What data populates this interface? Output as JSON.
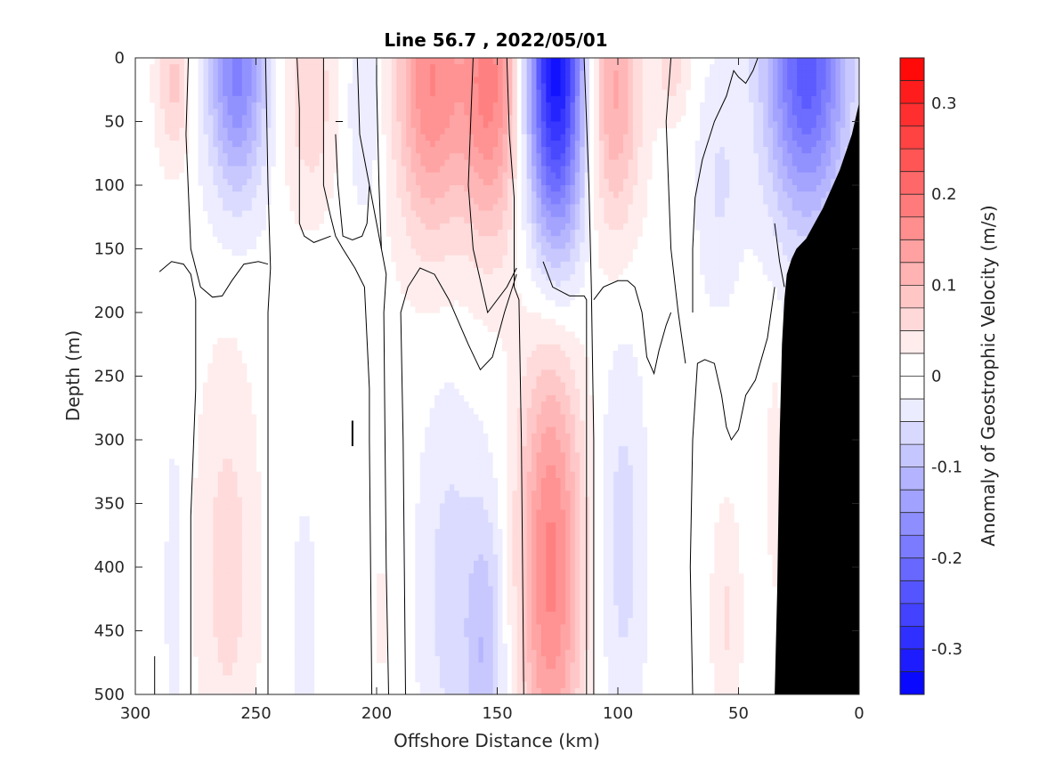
{
  "chart_data": {
    "type": "heatmap",
    "subtype": "filled-contour section",
    "title": "Line 56.7 , 2022/05/01",
    "xlabel": "Offshore Distance (km)",
    "ylabel": "Depth (m)",
    "colorbar_label": "Anomaly of Geostrophic Velocity (m/s)",
    "x_axis": {
      "min": 0,
      "max": 300,
      "reversed": true,
      "ticks": [
        300,
        250,
        200,
        150,
        100,
        50,
        0
      ],
      "tick_labels": [
        "300",
        "250",
        "200",
        "150",
        "100",
        "50",
        "0"
      ]
    },
    "y_axis": {
      "min": 0,
      "max": 500,
      "reversed": true,
      "ticks": [
        0,
        50,
        100,
        150,
        200,
        250,
        300,
        350,
        400,
        450,
        500
      ],
      "tick_labels": [
        "0",
        "50",
        "100",
        "150",
        "200",
        "250",
        "300",
        "350",
        "400",
        "450",
        "500"
      ]
    },
    "colorbar": {
      "min": -0.35,
      "max": 0.35,
      "step": 0.025,
      "ticks": [
        0.3,
        0.2,
        0.1,
        0,
        -0.1,
        -0.2,
        -0.3
      ],
      "tick_labels": [
        "0.3",
        "0.2",
        "0.1",
        "0",
        "-0.1",
        "-0.2",
        "-0.3"
      ],
      "positive_color": "#ff0000",
      "negative_color": "#0000ff",
      "zero_color": "#ffffff"
    },
    "grid": false,
    "bathymetry_color": "#000000",
    "bathymetry": [
      [
        0,
        35
      ],
      [
        3,
        60
      ],
      [
        8,
        88
      ],
      [
        15,
        118
      ],
      [
        22,
        142
      ],
      [
        26,
        150
      ],
      [
        28,
        158
      ],
      [
        30,
        170
      ],
      [
        31,
        190
      ],
      [
        32,
        225
      ],
      [
        33,
        300
      ],
      [
        34,
        420
      ],
      [
        35,
        500
      ]
    ],
    "cores": [
      {
        "x": 284,
        "z": 20,
        "v": 0.07,
        "wx": 7,
        "wz": 60
      },
      {
        "x": 258,
        "z": 10,
        "v": -0.17,
        "wx": 12,
        "wz": 95
      },
      {
        "x": 228,
        "z": 30,
        "v": 0.06,
        "wx": 11,
        "wz": 85
      },
      {
        "x": 205,
        "z": 35,
        "v": -0.04,
        "wx": 7,
        "wz": 80
      },
      {
        "x": 178,
        "z": 18,
        "v": 0.16,
        "wx": 14,
        "wz": 120
      },
      {
        "x": 153,
        "z": 20,
        "v": 0.17,
        "wx": 13,
        "wz": 120
      },
      {
        "x": 126,
        "z": 6,
        "v": -0.33,
        "wx": 12,
        "wz": 140
      },
      {
        "x": 102,
        "z": 25,
        "v": 0.12,
        "wx": 11,
        "wz": 110
      },
      {
        "x": 78,
        "z": 8,
        "v": 0.05,
        "wx": 7,
        "wz": 40
      },
      {
        "x": 58,
        "z": 100,
        "v": -0.04,
        "wx": 9,
        "wz": 90
      },
      {
        "x": 22,
        "z": 5,
        "v": -0.23,
        "wx": 17,
        "wz": 120
      },
      {
        "x": 262,
        "z": 400,
        "v": 0.05,
        "wx": 12,
        "wz": 160
      },
      {
        "x": 284,
        "z": 420,
        "v": -0.025,
        "wx": 4,
        "wz": 140
      },
      {
        "x": 230,
        "z": 460,
        "v": -0.03,
        "wx": 5,
        "wz": 110
      },
      {
        "x": 198,
        "z": 440,
        "v": 0.02,
        "wx": 3,
        "wz": 60
      },
      {
        "x": 170,
        "z": 420,
        "v": -0.05,
        "wx": 12,
        "wz": 150
      },
      {
        "x": 155,
        "z": 470,
        "v": -0.08,
        "wx": 8,
        "wz": 120
      },
      {
        "x": 128,
        "z": 400,
        "v": 0.17,
        "wx": 13,
        "wz": 180
      },
      {
        "x": 98,
        "z": 380,
        "v": -0.05,
        "wx": 9,
        "wz": 150
      },
      {
        "x": 55,
        "z": 440,
        "v": 0.04,
        "wx": 6,
        "wz": 90
      },
      {
        "x": 35,
        "z": 330,
        "v": 0.03,
        "wx": 3,
        "wz": 90
      }
    ],
    "zero_contours": [
      [
        [
          290,
          168
        ],
        [
          285,
          160
        ],
        [
          280,
          162
        ],
        [
          277,
          170
        ],
        [
          275,
          190
        ],
        [
          275,
          260
        ],
        [
          277,
          360
        ],
        [
          277,
          500
        ]
      ],
      [
        [
          292,
          500
        ],
        [
          292,
          470
        ]
      ],
      [
        [
          278,
          0
        ],
        [
          279,
          60
        ],
        [
          277,
          150
        ],
        [
          273,
          180
        ],
        [
          268,
          188
        ],
        [
          264,
          187
        ],
        [
          260,
          175
        ],
        [
          255,
          162
        ],
        [
          249,
          160
        ],
        [
          245,
          162
        ]
      ],
      [
        [
          246,
          0
        ],
        [
          245,
          100
        ],
        [
          244,
          165
        ],
        [
          245,
          200
        ],
        [
          245,
          300
        ],
        [
          245,
          500
        ]
      ],
      [
        [
          200,
          0
        ],
        [
          200,
          20
        ],
        [
          199,
          100
        ],
        [
          198,
          150
        ],
        [
          196,
          170
        ],
        [
          197,
          200
        ],
        [
          196,
          400
        ],
        [
          195,
          500
        ]
      ],
      [
        [
          208,
          0
        ],
        [
          207,
          60
        ],
        [
          203,
          100
        ],
        [
          198,
          150
        ]
      ],
      [
        [
          217,
          50
        ],
        [
          214,
          50
        ]
      ],
      [
        [
          217,
          60
        ],
        [
          216,
          100
        ],
        [
          214,
          140
        ],
        [
          210,
          143
        ],
        [
          206,
          140
        ],
        [
          204,
          130
        ],
        [
          203,
          100
        ]
      ],
      [
        [
          222,
          0
        ],
        [
          222,
          100
        ],
        [
          219,
          125
        ],
        [
          217,
          140
        ],
        [
          214,
          150
        ],
        [
          209,
          165
        ],
        [
          205,
          180
        ],
        [
          203,
          260
        ],
        [
          203,
          300
        ],
        [
          202,
          500
        ]
      ],
      [
        [
          233,
          0
        ],
        [
          232,
          40
        ],
        [
          232,
          130
        ],
        [
          230,
          140
        ],
        [
          226,
          145
        ],
        [
          219,
          140
        ]
      ],
      [
        [
          146,
          0
        ],
        [
          145,
          60
        ],
        [
          143,
          110
        ],
        [
          143,
          180
        ],
        [
          141,
          190
        ],
        [
          140,
          300
        ],
        [
          139,
          500
        ]
      ],
      [
        [
          160,
          0
        ],
        [
          162,
          100
        ],
        [
          160,
          150
        ],
        [
          154,
          200
        ],
        [
          146,
          180
        ],
        [
          142,
          165
        ]
      ],
      [
        [
          188,
          500
        ],
        [
          189,
          300
        ],
        [
          190,
          200
        ],
        [
          187,
          180
        ],
        [
          182,
          165
        ],
        [
          176,
          170
        ],
        [
          170,
          190
        ],
        [
          162,
          225
        ],
        [
          157,
          245
        ],
        [
          152,
          235
        ],
        [
          147,
          200
        ],
        [
          142,
          170
        ]
      ],
      [
        [
          114,
          0
        ],
        [
          112,
          100
        ],
        [
          111,
          180
        ],
        [
          110,
          300
        ],
        [
          110,
          500
        ]
      ],
      [
        [
          131,
          160
        ],
        [
          127,
          180
        ],
        [
          120,
          187
        ],
        [
          114,
          187
        ],
        [
          113,
          190
        ],
        [
          113,
          300
        ],
        [
          113,
          500
        ]
      ],
      [
        [
          110,
          190
        ],
        [
          106,
          180
        ],
        [
          100,
          175
        ],
        [
          96,
          175
        ],
        [
          93,
          180
        ],
        [
          90,
          200
        ],
        [
          88,
          235
        ],
        [
          85,
          248
        ],
        [
          83,
          230
        ],
        [
          80,
          210
        ],
        [
          78,
          200
        ]
      ],
      [
        [
          69,
          500
        ],
        [
          70,
          400
        ],
        [
          69,
          300
        ],
        [
          67,
          240
        ],
        [
          64,
          237
        ],
        [
          60,
          240
        ],
        [
          57,
          265
        ],
        [
          55,
          290
        ],
        [
          53,
          300
        ],
        [
          50,
          292
        ],
        [
          47,
          265
        ],
        [
          43,
          253
        ],
        [
          38,
          220
        ],
        [
          35,
          180
        ]
      ],
      [
        [
          78,
          0
        ],
        [
          80,
          50
        ],
        [
          78,
          150
        ],
        [
          75,
          200
        ],
        [
          72,
          240
        ]
      ],
      [
        [
          42,
          0
        ],
        [
          44,
          10
        ],
        [
          47,
          20
        ],
        [
          50,
          15
        ],
        [
          52,
          10
        ],
        [
          55,
          30
        ],
        [
          60,
          50
        ],
        [
          65,
          80
        ],
        [
          68,
          110
        ],
        [
          69,
          150
        ],
        [
          69,
          200
        ]
      ],
      [
        [
          35,
          130
        ],
        [
          33,
          160
        ],
        [
          31,
          180
        ]
      ]
    ],
    "stray_marks": [
      [
        [
          210,
          285
        ],
        [
          210,
          305
        ]
      ]
    ]
  }
}
